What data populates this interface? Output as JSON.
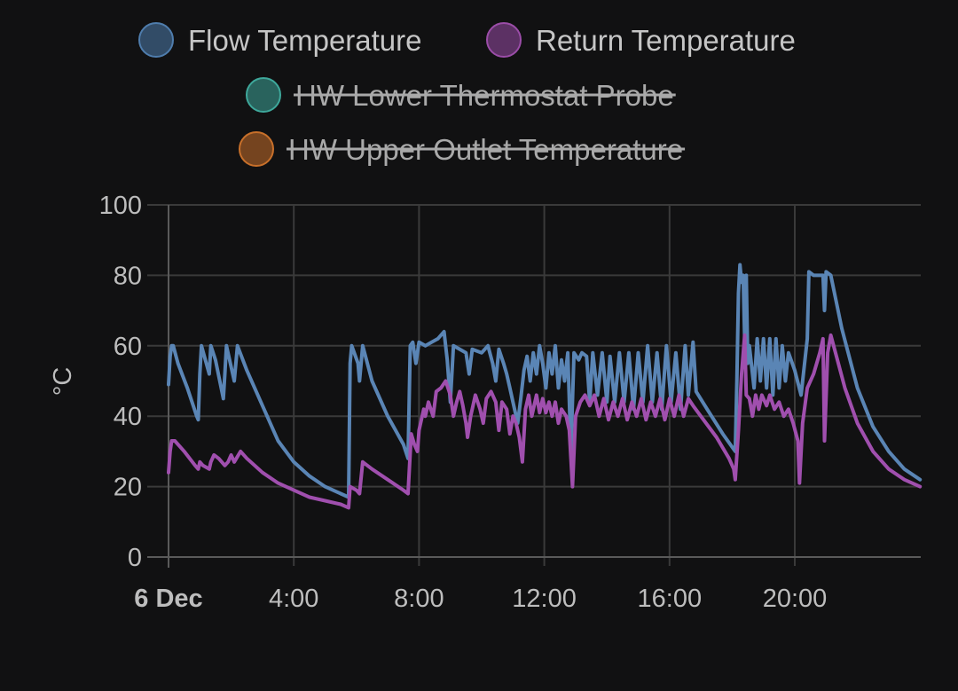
{
  "chart_data": {
    "type": "line",
    "ylabel": "°C",
    "xlabel": "",
    "title": "",
    "ylim": [
      0,
      100
    ],
    "xlim": [
      0,
      24.4
    ],
    "yticks": [
      0,
      20,
      40,
      60,
      80,
      100
    ],
    "xticks": [
      {
        "x": 0,
        "label": "6 Dec",
        "bold": true
      },
      {
        "x": 4,
        "label": "4:00",
        "bold": false
      },
      {
        "x": 8,
        "label": "8:00",
        "bold": false
      },
      {
        "x": 12,
        "label": "12:00",
        "bold": false
      },
      {
        "x": 16,
        "label": "16:00",
        "bold": false
      },
      {
        "x": 20,
        "label": "20:00",
        "bold": false
      }
    ],
    "grid": true,
    "legend_position": "top",
    "legend": [
      {
        "name": "Flow Temperature",
        "color": "#4f7dad",
        "hidden": false
      },
      {
        "name": "Return Temperature",
        "color": "#9b4da8",
        "hidden": false
      },
      {
        "name": "HW Lower Thermostat Probe",
        "color": "#3ea89b",
        "hidden": true
      },
      {
        "name": "HW Upper Outlet Temperature",
        "color": "#c8702a",
        "hidden": true
      }
    ],
    "series": [
      {
        "name": "Flow Temperature",
        "color": "#5a85b5",
        "points": [
          [
            0,
            49
          ],
          [
            0.05,
            57
          ],
          [
            0.1,
            60
          ],
          [
            0.15,
            60
          ],
          [
            0.3,
            55
          ],
          [
            0.6,
            48
          ],
          [
            0.9,
            40
          ],
          [
            0.95,
            39
          ],
          [
            1.0,
            52
          ],
          [
            1.05,
            60
          ],
          [
            1.3,
            52
          ],
          [
            1.35,
            60
          ],
          [
            1.5,
            56
          ],
          [
            1.75,
            45
          ],
          [
            1.8,
            52
          ],
          [
            1.85,
            60
          ],
          [
            2.1,
            50
          ],
          [
            2.15,
            55
          ],
          [
            2.2,
            60
          ],
          [
            2.5,
            53
          ],
          [
            3.0,
            43
          ],
          [
            3.5,
            33
          ],
          [
            4.0,
            27
          ],
          [
            4.5,
            23
          ],
          [
            5.0,
            20
          ],
          [
            5.5,
            18
          ],
          [
            5.75,
            17
          ],
          [
            5.8,
            55
          ],
          [
            5.85,
            60
          ],
          [
            6.05,
            55
          ],
          [
            6.1,
            50
          ],
          [
            6.2,
            60
          ],
          [
            6.5,
            50
          ],
          [
            7.0,
            40
          ],
          [
            7.5,
            32
          ],
          [
            7.65,
            28
          ],
          [
            7.72,
            60
          ],
          [
            7.8,
            61
          ],
          [
            7.9,
            55
          ],
          [
            8.0,
            61
          ],
          [
            8.2,
            60
          ],
          [
            8.4,
            61
          ],
          [
            8.6,
            62
          ],
          [
            8.8,
            64
          ],
          [
            8.9,
            56
          ],
          [
            9.0,
            44
          ],
          [
            9.1,
            60
          ],
          [
            9.3,
            59
          ],
          [
            9.5,
            58
          ],
          [
            9.6,
            52
          ],
          [
            9.7,
            59
          ],
          [
            10.0,
            58
          ],
          [
            10.2,
            60
          ],
          [
            10.35,
            55
          ],
          [
            10.45,
            50
          ],
          [
            10.55,
            59
          ],
          [
            10.7,
            55
          ],
          [
            10.8,
            52
          ],
          [
            10.9,
            48
          ],
          [
            11.0,
            44
          ],
          [
            11.15,
            38
          ],
          [
            11.25,
            45
          ],
          [
            11.35,
            53
          ],
          [
            11.45,
            57
          ],
          [
            11.55,
            50
          ],
          [
            11.65,
            58
          ],
          [
            11.75,
            52
          ],
          [
            11.85,
            60
          ],
          [
            11.95,
            55
          ],
          [
            12.05,
            48
          ],
          [
            12.15,
            58
          ],
          [
            12.25,
            52
          ],
          [
            12.35,
            60
          ],
          [
            12.45,
            48
          ],
          [
            12.55,
            56
          ],
          [
            12.65,
            50
          ],
          [
            12.75,
            58
          ],
          [
            12.85,
            30
          ],
          [
            12.95,
            58
          ],
          [
            13.1,
            56
          ],
          [
            13.2,
            58
          ],
          [
            13.35,
            57
          ],
          [
            13.45,
            44
          ],
          [
            13.55,
            58
          ],
          [
            13.7,
            46
          ],
          [
            13.85,
            58
          ],
          [
            14.0,
            44
          ],
          [
            14.1,
            57
          ],
          [
            14.25,
            44
          ],
          [
            14.4,
            58
          ],
          [
            14.55,
            44
          ],
          [
            14.7,
            58
          ],
          [
            14.85,
            42
          ],
          [
            15.0,
            58
          ],
          [
            15.15,
            44
          ],
          [
            15.3,
            60
          ],
          [
            15.45,
            44
          ],
          [
            15.6,
            58
          ],
          [
            15.75,
            42
          ],
          [
            15.9,
            60
          ],
          [
            16.05,
            44
          ],
          [
            16.2,
            58
          ],
          [
            16.35,
            42
          ],
          [
            16.5,
            60
          ],
          [
            16.6,
            46
          ],
          [
            16.75,
            61
          ],
          [
            16.85,
            47
          ],
          [
            17.2,
            42
          ],
          [
            17.7,
            35
          ],
          [
            18.1,
            30
          ],
          [
            18.15,
            50
          ],
          [
            18.2,
            75
          ],
          [
            18.25,
            83
          ],
          [
            18.3,
            78
          ],
          [
            18.35,
            80
          ],
          [
            18.4,
            62
          ],
          [
            18.45,
            80
          ],
          [
            18.5,
            55
          ],
          [
            18.55,
            60
          ],
          [
            18.7,
            48
          ],
          [
            18.8,
            62
          ],
          [
            18.9,
            50
          ],
          [
            19.0,
            62
          ],
          [
            19.1,
            48
          ],
          [
            19.2,
            62
          ],
          [
            19.3,
            46
          ],
          [
            19.4,
            62
          ],
          [
            19.5,
            48
          ],
          [
            19.6,
            60
          ],
          [
            19.7,
            50
          ],
          [
            19.8,
            58
          ],
          [
            20.0,
            53
          ],
          [
            20.2,
            46
          ],
          [
            20.4,
            62
          ],
          [
            20.45,
            81
          ],
          [
            20.6,
            80
          ],
          [
            20.9,
            80
          ],
          [
            20.95,
            70
          ],
          [
            21.0,
            81
          ],
          [
            21.15,
            80
          ],
          [
            21.5,
            65
          ],
          [
            22.0,
            48
          ],
          [
            22.5,
            37
          ],
          [
            23.0,
            30
          ],
          [
            23.5,
            25
          ],
          [
            24.0,
            22
          ]
        ]
      },
      {
        "name": "Return Temperature",
        "color": "#a04fae",
        "points": [
          [
            0,
            24
          ],
          [
            0.05,
            30
          ],
          [
            0.1,
            33
          ],
          [
            0.2,
            33
          ],
          [
            0.5,
            30
          ],
          [
            0.85,
            26
          ],
          [
            0.95,
            25
          ],
          [
            1.0,
            27
          ],
          [
            1.1,
            26
          ],
          [
            1.3,
            25
          ],
          [
            1.35,
            27
          ],
          [
            1.45,
            29
          ],
          [
            1.6,
            28
          ],
          [
            1.8,
            26
          ],
          [
            1.9,
            27
          ],
          [
            2.0,
            29
          ],
          [
            2.1,
            27
          ],
          [
            2.3,
            30
          ],
          [
            2.5,
            28
          ],
          [
            3.0,
            24
          ],
          [
            3.5,
            21
          ],
          [
            4.0,
            19
          ],
          [
            4.5,
            17
          ],
          [
            5.0,
            16
          ],
          [
            5.5,
            15
          ],
          [
            5.75,
            14
          ],
          [
            5.8,
            20
          ],
          [
            6.0,
            19
          ],
          [
            6.1,
            18
          ],
          [
            6.2,
            27
          ],
          [
            6.5,
            25
          ],
          [
            7.0,
            22
          ],
          [
            7.5,
            19
          ],
          [
            7.65,
            18
          ],
          [
            7.75,
            35
          ],
          [
            7.85,
            32
          ],
          [
            7.95,
            30
          ],
          [
            8.0,
            36
          ],
          [
            8.15,
            42
          ],
          [
            8.2,
            40
          ],
          [
            8.3,
            44
          ],
          [
            8.45,
            40
          ],
          [
            8.55,
            47
          ],
          [
            8.7,
            48
          ],
          [
            8.85,
            50
          ],
          [
            9.0,
            46
          ],
          [
            9.1,
            40
          ],
          [
            9.2,
            44
          ],
          [
            9.3,
            47
          ],
          [
            9.4,
            43
          ],
          [
            9.5,
            38
          ],
          [
            9.55,
            34
          ],
          [
            9.65,
            40
          ],
          [
            9.8,
            46
          ],
          [
            9.95,
            42
          ],
          [
            10.05,
            38
          ],
          [
            10.15,
            45
          ],
          [
            10.3,
            47
          ],
          [
            10.45,
            44
          ],
          [
            10.55,
            36
          ],
          [
            10.65,
            44
          ],
          [
            10.8,
            42
          ],
          [
            10.9,
            35
          ],
          [
            11.0,
            40
          ],
          [
            11.1,
            38
          ],
          [
            11.2,
            34
          ],
          [
            11.3,
            27
          ],
          [
            11.4,
            42
          ],
          [
            11.5,
            46
          ],
          [
            11.6,
            40
          ],
          [
            11.75,
            46
          ],
          [
            11.85,
            41
          ],
          [
            11.95,
            45
          ],
          [
            12.05,
            41
          ],
          [
            12.15,
            44
          ],
          [
            12.25,
            40
          ],
          [
            12.35,
            44
          ],
          [
            12.45,
            38
          ],
          [
            12.55,
            42
          ],
          [
            12.7,
            40
          ],
          [
            12.8,
            36
          ],
          [
            12.9,
            20
          ],
          [
            13.0,
            40
          ],
          [
            13.15,
            44
          ],
          [
            13.3,
            46
          ],
          [
            13.45,
            43
          ],
          [
            13.6,
            46
          ],
          [
            13.75,
            40
          ],
          [
            13.9,
            45
          ],
          [
            14.05,
            39
          ],
          [
            14.2,
            44
          ],
          [
            14.35,
            40
          ],
          [
            14.5,
            45
          ],
          [
            14.65,
            39
          ],
          [
            14.8,
            44
          ],
          [
            14.95,
            40
          ],
          [
            15.1,
            45
          ],
          [
            15.25,
            39
          ],
          [
            15.4,
            44
          ],
          [
            15.55,
            40
          ],
          [
            15.7,
            45
          ],
          [
            15.85,
            39
          ],
          [
            16.0,
            45
          ],
          [
            16.15,
            40
          ],
          [
            16.3,
            46
          ],
          [
            16.45,
            40
          ],
          [
            16.6,
            45
          ],
          [
            16.75,
            43
          ],
          [
            17.0,
            40
          ],
          [
            17.5,
            34
          ],
          [
            17.9,
            28
          ],
          [
            18.05,
            25
          ],
          [
            18.1,
            22
          ],
          [
            18.2,
            36
          ],
          [
            18.3,
            52
          ],
          [
            18.4,
            63
          ],
          [
            18.45,
            46
          ],
          [
            18.55,
            45
          ],
          [
            18.65,
            40
          ],
          [
            18.75,
            46
          ],
          [
            18.85,
            42
          ],
          [
            18.95,
            46
          ],
          [
            19.1,
            43
          ],
          [
            19.2,
            46
          ],
          [
            19.35,
            42
          ],
          [
            19.5,
            44
          ],
          [
            19.65,
            40
          ],
          [
            19.8,
            42
          ],
          [
            19.95,
            38
          ],
          [
            20.1,
            33
          ],
          [
            20.15,
            21
          ],
          [
            20.25,
            38
          ],
          [
            20.4,
            48
          ],
          [
            20.6,
            52
          ],
          [
            20.8,
            58
          ],
          [
            20.9,
            62
          ],
          [
            20.95,
            33
          ],
          [
            21.05,
            58
          ],
          [
            21.15,
            63
          ],
          [
            21.3,
            58
          ],
          [
            21.6,
            48
          ],
          [
            22.0,
            38
          ],
          [
            22.5,
            30
          ],
          [
            23.0,
            25
          ],
          [
            23.5,
            22
          ],
          [
            24.0,
            20
          ]
        ]
      }
    ]
  }
}
